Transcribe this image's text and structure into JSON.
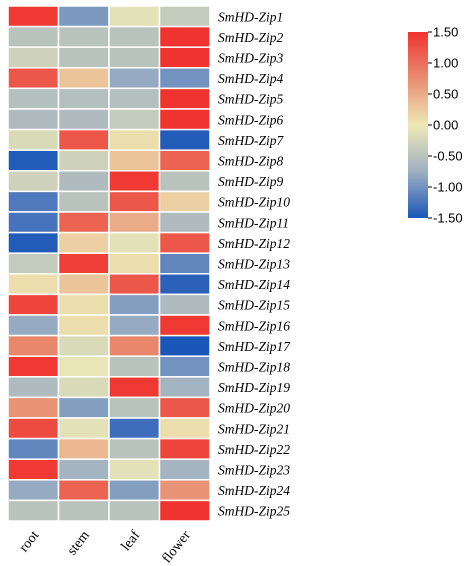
{
  "chart_data": {
    "type": "heatmap",
    "title": "",
    "rows": [
      "SmHD-Zip1",
      "SmHD-Zip2",
      "SmHD-Zip3",
      "SmHD-Zip4",
      "SmHD-Zip5",
      "SmHD-Zip6",
      "SmHD-Zip7",
      "SmHD-Zip8",
      "SmHD-Zip9",
      "SmHD-Zip10",
      "SmHD-Zip11",
      "SmHD-Zip12",
      "SmHD-Zip13",
      "SmHD-Zip14",
      "SmHD-Zip15",
      "SmHD-Zip16",
      "SmHD-Zip17",
      "SmHD-Zip18",
      "SmHD-Zip19",
      "SmHD-Zip20",
      "SmHD-Zip21",
      "SmHD-Zip22",
      "SmHD-Zip23",
      "SmHD-Zip24",
      "SmHD-Zip25"
    ],
    "columns": [
      "root",
      "stem",
      "leaf",
      "flower"
    ],
    "values": [
      [
        1.45,
        -0.95,
        -0.1,
        -0.4
      ],
      [
        -0.5,
        -0.5,
        -0.5,
        1.5
      ],
      [
        -0.3,
        -0.5,
        -0.5,
        1.5
      ],
      [
        1.2,
        0.3,
        -0.8,
        -1.0
      ],
      [
        -0.55,
        -0.55,
        -0.55,
        1.5
      ],
      [
        -0.6,
        -0.6,
        -0.4,
        1.5
      ],
      [
        -0.2,
        1.2,
        0.1,
        -1.45
      ],
      [
        -1.45,
        -0.3,
        0.3,
        1.1
      ],
      [
        -0.3,
        -0.6,
        1.45,
        -0.5
      ],
      [
        -1.2,
        -0.5,
        1.2,
        0.2
      ],
      [
        -1.25,
        1.1,
        0.5,
        -0.6
      ],
      [
        -1.45,
        0.2,
        -0.1,
        1.2
      ],
      [
        -0.4,
        1.4,
        0.1,
        -1.1
      ],
      [
        0.1,
        0.3,
        1.2,
        -1.4
      ],
      [
        1.35,
        0.1,
        -0.9,
        -0.6
      ],
      [
        -0.8,
        0.1,
        -0.8,
        1.45
      ],
      [
        0.8,
        -0.2,
        0.8,
        -1.5
      ],
      [
        1.45,
        -0.05,
        -0.5,
        -1.0
      ],
      [
        -0.6,
        -0.2,
        1.45,
        -0.7
      ],
      [
        0.7,
        -0.9,
        -0.5,
        1.2
      ],
      [
        1.3,
        -0.1,
        -1.3,
        0.1
      ],
      [
        -1.1,
        0.4,
        -0.5,
        1.35
      ],
      [
        1.45,
        -0.7,
        -0.1,
        -0.7
      ],
      [
        -0.8,
        1.1,
        -0.9,
        0.7
      ],
      [
        -0.5,
        -0.5,
        -0.5,
        1.5
      ]
    ],
    "colorbar": {
      "ticks": [
        "1.50",
        "1.00",
        "0.50",
        "0.00",
        "-0.50",
        "-1.00",
        "-1.50"
      ],
      "range": [
        -1.5,
        1.5
      ],
      "colors": {
        "low": "#1a55b8",
        "mid": "#ede9b5",
        "high": "#f0332e",
        "lowmid": "#9fb0c2",
        "highmid": "#e98d72"
      }
    },
    "cell_border_color": "#ffffff"
  }
}
